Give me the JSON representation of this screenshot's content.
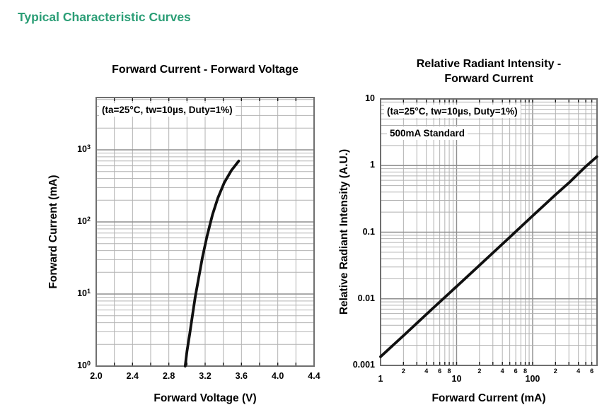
{
  "page_title": "Typical Characteristic Curves",
  "colors": {
    "heading_green": "#2b9e76",
    "curve_black": "#101010",
    "grid_minor": "#b2b2b2",
    "grid_major": "#8f8f8f",
    "plot_border": "#6f6f6f",
    "tick_mark": "#1a1a1a",
    "text": "#000000"
  },
  "chart_data": [
    {
      "type": "line",
      "title_lines": [
        "Forward Current - Forward Voltage"
      ],
      "xlabel": "Forward Voltage (V)",
      "ylabel": "Forward Current (mA)",
      "annotations": [
        {
          "text": "(ta=25°C, tw=10µs, Duty=1%)"
        }
      ],
      "x_axis": {
        "scale": "linear",
        "min": 2.0,
        "max": 4.4,
        "grid_step": 0.2,
        "ticks": [
          {
            "label": "2.0",
            "value": 2.0
          },
          {
            "label": "2.4",
            "value": 2.4
          },
          {
            "label": "2.8",
            "value": 2.8
          },
          {
            "label": "3.2",
            "value": 3.2
          },
          {
            "label": "3.6",
            "value": 3.6
          },
          {
            "label": "4.0",
            "value": 4.0
          },
          {
            "label": "4.4",
            "value": 4.4
          }
        ]
      },
      "y_axis": {
        "scale": "log",
        "min": 1,
        "max": 5316,
        "ticks": [
          {
            "base": "10",
            "exp": "0",
            "value": 1
          },
          {
            "base": "10",
            "exp": "1",
            "value": 10
          },
          {
            "base": "10",
            "exp": "2",
            "value": 100
          },
          {
            "base": "10",
            "exp": "3",
            "value": 1000
          }
        ]
      },
      "series": [
        {
          "name": "forward-current-vs-voltage-curve",
          "points": [
            [
              2.98,
              1
            ],
            [
              3.0,
              1.6
            ],
            [
              3.03,
              2.8
            ],
            [
              3.06,
              5
            ],
            [
              3.09,
              9
            ],
            [
              3.13,
              17
            ],
            [
              3.17,
              32
            ],
            [
              3.22,
              63
            ],
            [
              3.28,
              125
            ],
            [
              3.34,
              215
            ],
            [
              3.41,
              350
            ],
            [
              3.49,
              520
            ],
            [
              3.57,
              700
            ]
          ]
        }
      ]
    },
    {
      "type": "line",
      "title_lines": [
        "Relative Radiant Intensity -",
        "Forward Current"
      ],
      "xlabel": "Forward Current (mA)",
      "ylabel": "Relative Radiant Intensity (A.U.)",
      "annotations": [
        {
          "text": "(ta=25°C, tw=10µs, Duty=1%)"
        },
        {
          "text": "500mA Standard"
        }
      ],
      "x_axis": {
        "scale": "log",
        "min": 1,
        "max": 703,
        "ticks": [
          {
            "label": "1",
            "value": 1
          },
          {
            "label": "10",
            "value": 10
          },
          {
            "label": "100",
            "value": 100
          }
        ],
        "minor_ticks": [
          {
            "label": "2",
            "value": 2
          },
          {
            "label": "4",
            "value": 4
          },
          {
            "label": "6",
            "value": 6
          },
          {
            "label": "8",
            "value": 8
          },
          {
            "label": "2",
            "value": 20
          },
          {
            "label": "4",
            "value": 40
          },
          {
            "label": "6",
            "value": 60
          },
          {
            "label": "8",
            "value": 80
          },
          {
            "label": "2",
            "value": 200
          },
          {
            "label": "4",
            "value": 400
          },
          {
            "label": "6",
            "value": 600
          }
        ]
      },
      "y_axis": {
        "scale": "log",
        "min": 0.001,
        "max": 10,
        "ticks": [
          {
            "label": "10",
            "value": 10
          },
          {
            "label": "1",
            "value": 1
          },
          {
            "label": "0.1",
            "value": 0.1
          },
          {
            "label": "0.01",
            "value": 0.01
          },
          {
            "label": "0.001",
            "value": 0.001
          }
        ]
      },
      "series": [
        {
          "name": "relative-radiant-intensity-vs-current-curve",
          "points": [
            [
              1,
              0.00135
            ],
            [
              2,
              0.0028
            ],
            [
              5,
              0.0074
            ],
            [
              10,
              0.0153
            ],
            [
              20,
              0.0318
            ],
            [
              50,
              0.084
            ],
            [
              100,
              0.176
            ],
            [
              200,
              0.365
            ],
            [
              300,
              0.55
            ],
            [
              500,
              0.97
            ],
            [
              700,
              1.36
            ]
          ]
        }
      ]
    }
  ]
}
